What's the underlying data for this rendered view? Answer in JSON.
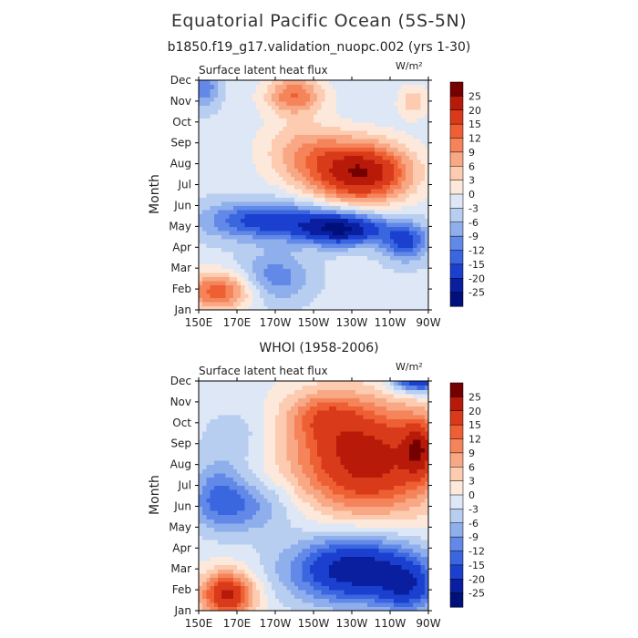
{
  "title": "Equatorial Pacific Ocean (5S-5N)",
  "subtitle": "b1850.f19_g17.validation_nuopc.002 (yrs 1-30)",
  "colorbar_levels": [
    "25",
    "20",
    "15",
    "12",
    "9",
    "6",
    "3",
    "0",
    "-3",
    "-6",
    "-9",
    "-12",
    "-15",
    "-20",
    "-25"
  ],
  "colors": [
    "#750000",
    "#b81a0a",
    "#d93a1a",
    "#ee5f33",
    "#f5845a",
    "#f8a884",
    "#fccbb0",
    "#fde9dc",
    "#dde7f5",
    "#b8cef0",
    "#8faeec",
    "#6389e8",
    "#3a66e0",
    "#1b40cf",
    "#0a1fa0",
    "#00107a"
  ],
  "chart_data": [
    {
      "type": "heatmap",
      "panel_label": "",
      "title": "Surface latent heat flux",
      "units": "W/m²",
      "ylabel": "Month",
      "x_ticks": [
        "150E",
        "170E",
        "170W",
        "150W",
        "130W",
        "110W",
        "90W"
      ],
      "y_ticks": [
        "Jan",
        "Feb",
        "Mar",
        "Apr",
        "May",
        "Jun",
        "Jul",
        "Aug",
        "Sep",
        "Oct",
        "Nov",
        "Dec"
      ],
      "x_range": [
        150,
        270
      ],
      "y_range": [
        1,
        12
      ],
      "features": [
        {
          "type": "base",
          "value": -2
        },
        {
          "lon": 160,
          "month": 1.9,
          "value": 16,
          "rx": 18,
          "ry": 0.9
        },
        {
          "lon": 200,
          "month": 11.3,
          "value": 14,
          "rx": 15,
          "ry": 0.9
        },
        {
          "lon": 235,
          "month": 7.6,
          "value": 27,
          "rx": 25,
          "ry": 1.4
        },
        {
          "lon": 205,
          "month": 8.6,
          "value": 9,
          "rx": 22,
          "ry": 1.5
        },
        {
          "lon": 262,
          "month": 11,
          "value": 7,
          "rx": 8,
          "ry": 0.8
        },
        {
          "lon": 185,
          "month": 5.3,
          "value": -15,
          "rx": 32,
          "ry": 0.9
        },
        {
          "lon": 225,
          "month": 4.9,
          "value": -23,
          "rx": 22,
          "ry": 0.75
        },
        {
          "lon": 258,
          "month": 4.3,
          "value": -14,
          "rx": 12,
          "ry": 0.9
        },
        {
          "lon": 190,
          "month": 2.6,
          "value": -9,
          "rx": 18,
          "ry": 1.2
        },
        {
          "lon": 153,
          "month": 11.7,
          "value": -9,
          "rx": 8,
          "ry": 1.0
        }
      ]
    },
    {
      "type": "heatmap",
      "panel_label": "WHOI (1958-2006)",
      "title": "Surface latent heat flux",
      "units": "W/m²",
      "ylabel": "Month",
      "x_ticks": [
        "150E",
        "170E",
        "170W",
        "150W",
        "130W",
        "110W",
        "90W"
      ],
      "y_ticks": [
        "Jan",
        "Feb",
        "Mar",
        "Apr",
        "May",
        "Jun",
        "Jul",
        "Aug",
        "Sep",
        "Oct",
        "Nov",
        "Dec"
      ],
      "x_range": [
        150,
        270
      ],
      "y_range": [
        1,
        12
      ],
      "features": [
        {
          "type": "base",
          "value": -1
        },
        {
          "lon": 165,
          "month": 1.8,
          "value": 22,
          "rx": 14,
          "ry": 1.1
        },
        {
          "lon": 238,
          "month": 8.3,
          "value": 24,
          "rx": 38,
          "ry": 2.6
        },
        {
          "lon": 265,
          "month": 8.8,
          "value": 14,
          "rx": 8,
          "ry": 1.3
        },
        {
          "lon": 215,
          "month": 10.4,
          "value": 9,
          "rx": 20,
          "ry": 1.2
        },
        {
          "lon": 232,
          "month": 3.0,
          "value": -23,
          "rx": 34,
          "ry": 1.6
        },
        {
          "lon": 260,
          "month": 2.1,
          "value": -12,
          "rx": 15,
          "ry": 1.2
        },
        {
          "lon": 175,
          "month": 6.0,
          "value": -9,
          "rx": 25,
          "ry": 1.3
        },
        {
          "lon": 160,
          "month": 6.7,
          "value": -8,
          "rx": 14,
          "ry": 1.6
        },
        {
          "lon": 265,
          "month": 12.1,
          "value": -22,
          "rx": 14,
          "ry": 0.6
        },
        {
          "lon": 170,
          "month": 9.4,
          "value": -4,
          "rx": 20,
          "ry": 1.5
        }
      ]
    }
  ]
}
